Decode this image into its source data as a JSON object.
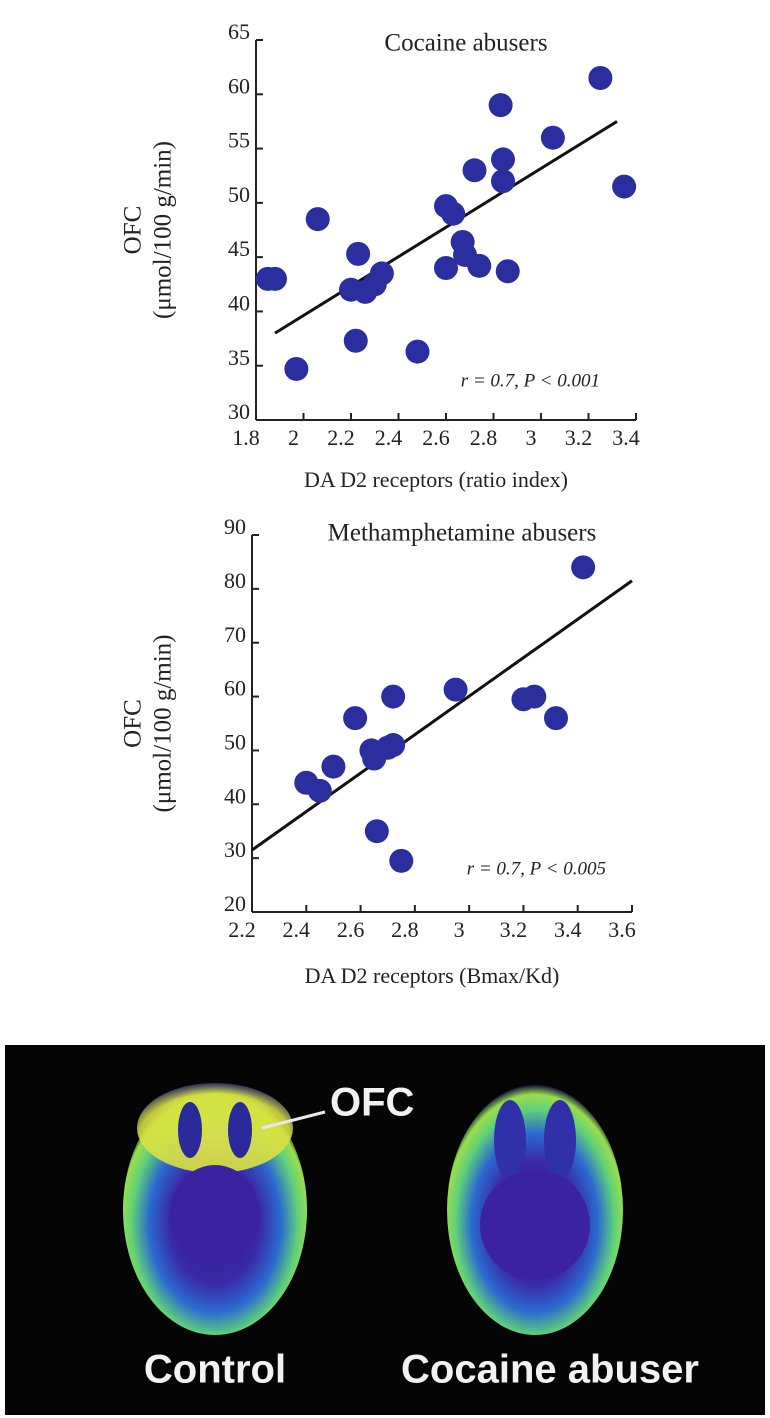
{
  "chart_data": [
    {
      "type": "scatter",
      "title": "Cocaine abusers",
      "ylabel": [
        "OFC",
        "(μmol/100 g/min)"
      ],
      "xlabel": "DA D2 receptors (ratio index)",
      "annotation": "r = 0.7, P < 0.001",
      "x": [
        1.85,
        1.88,
        1.97,
        2.06,
        2.2,
        2.22,
        2.23,
        2.26,
        2.3,
        2.33,
        2.48,
        2.6,
        2.6,
        2.63,
        2.67,
        2.68,
        2.72,
        2.74,
        2.83,
        2.84,
        2.84,
        2.86,
        3.05,
        3.25,
        3.35
      ],
      "y": [
        43,
        43,
        34.7,
        48.5,
        42,
        37.3,
        45.3,
        41.8,
        42.5,
        43.5,
        36.3,
        44,
        49.7,
        49,
        46.4,
        45.2,
        53,
        44.2,
        59,
        54,
        52,
        43.7,
        56,
        61.5,
        51.5
      ],
      "color": "#2a2e9e",
      "trendline": {
        "x": [
          1.88,
          3.32
        ],
        "y": [
          38,
          57.5
        ]
      },
      "xlim": [
        1.8,
        3.4
      ],
      "xticks": [
        1.8,
        2,
        2.2,
        2.4,
        2.6,
        2.8,
        3,
        3.2,
        3.4
      ],
      "ylim": [
        30,
        65
      ],
      "yticks": [
        30,
        35,
        40,
        45,
        50,
        55,
        60,
        65
      ]
    },
    {
      "type": "scatter",
      "title": "Methamphetamine abusers",
      "ylabel": [
        "OFC",
        "(μmol/100 g/min)"
      ],
      "xlabel": "DA D2 receptors (Bmax/Kd)",
      "annotation": "r = 0.7, P < 0.005",
      "x": [
        2.4,
        2.45,
        2.5,
        2.58,
        2.64,
        2.65,
        2.66,
        2.7,
        2.72,
        2.72,
        2.75,
        2.95,
        3.2,
        3.24,
        3.32,
        3.42
      ],
      "y": [
        44,
        42.5,
        47,
        56,
        50,
        48.5,
        35,
        50.5,
        51,
        60,
        29.5,
        61.3,
        59.5,
        60,
        56,
        84
      ],
      "color": "#2a2e9e",
      "trendline": {
        "x": [
          2.2,
          3.6
        ],
        "y": [
          31.5,
          81.5
        ]
      },
      "xlim": [
        2.2,
        3.6
      ],
      "xticks": [
        2.2,
        2.4,
        2.6,
        2.8,
        3,
        3.2,
        3.4,
        3.6
      ],
      "ylim": [
        20,
        90
      ],
      "yticks": [
        20,
        30,
        40,
        50,
        60,
        70,
        80,
        90
      ]
    }
  ],
  "image_panel": {
    "callout": "OFC",
    "labels": [
      "Control",
      "Cocaine abuser"
    ]
  }
}
